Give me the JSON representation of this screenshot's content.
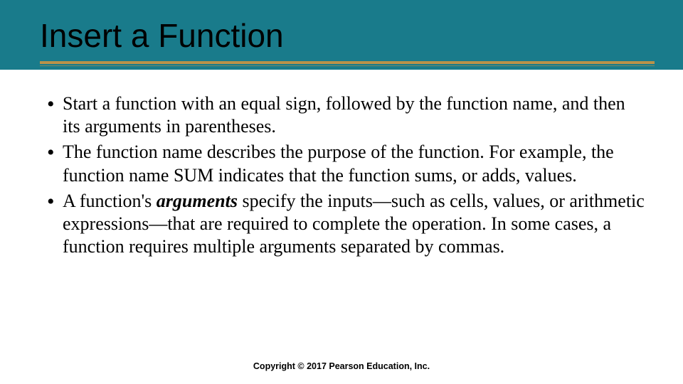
{
  "colors": {
    "header_bg": "#197b8b",
    "rule_gold": "#b9924a",
    "text": "#000000",
    "background": "#ffffff"
  },
  "typography": {
    "title_family": "Arial",
    "title_size_pt": 34,
    "body_family": "Times New Roman",
    "body_size_pt": 20,
    "footer_family": "Arial",
    "footer_size_pt": 9.5
  },
  "title": "Insert a Function",
  "bullets": {
    "b1": "Start a function with an equal sign, followed by the function name, and then its arguments in parentheses.",
    "b2": "The function name describes the purpose of the function. For example, the function name SUM indicates that the function sums, or adds, values.",
    "b3_pre": "A function's ",
    "b3_term": "arguments",
    "b3_post": " specify the inputs—such as cells, values, or arithmetic expressions—that are required to complete the operation. In some cases, a function requires multiple arguments separated by commas."
  },
  "footer": "Copyright © 2017 Pearson Education, Inc."
}
